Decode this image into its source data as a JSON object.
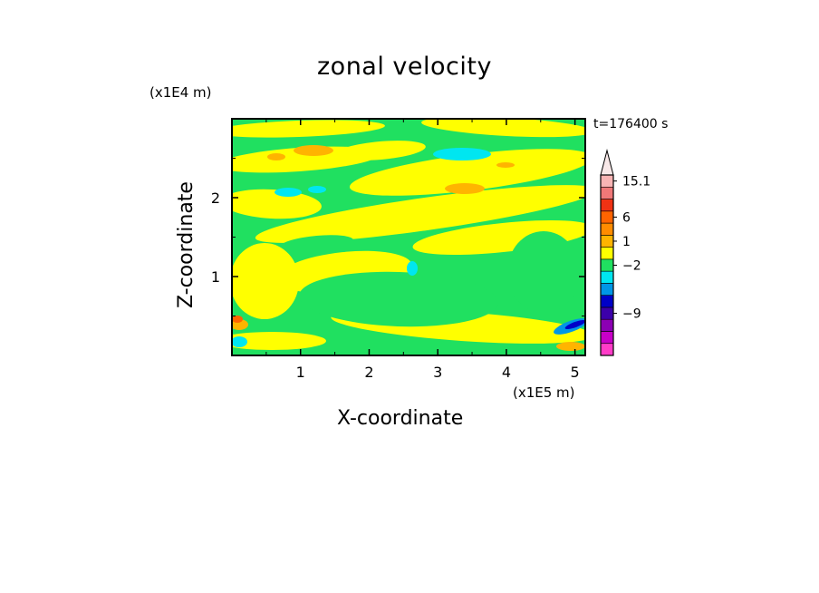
{
  "chart_data": {
    "type": "heatmap",
    "title": "zonal velocity",
    "xlabel": "X-coordinate",
    "ylabel": "Z-coordinate",
    "x_multiplier": "(x1E5 m)",
    "y_multiplier": "(x1E4 m)",
    "time_label": "t=176400 s",
    "xlim": [
      0,
      5.15
    ],
    "ylim": [
      0,
      3.0
    ],
    "x_ticks": [
      {
        "value": 1,
        "label": "1"
      },
      {
        "value": 2,
        "label": "2"
      },
      {
        "value": 3,
        "label": "3"
      },
      {
        "value": 4,
        "label": "4"
      },
      {
        "value": 5,
        "label": "5"
      }
    ],
    "y_ticks": [
      {
        "value": 1,
        "label": "1"
      },
      {
        "value": 2,
        "label": "2"
      }
    ],
    "colorbar": {
      "levels": [
        {
          "color": "#ff3cc8"
        },
        {
          "color": "#c800c8"
        },
        {
          "color": "#8c00b4"
        },
        {
          "color": "#3c00aa"
        },
        {
          "color": "#0000c8"
        },
        {
          "color": "#0096e6"
        },
        {
          "color": "#00e6f0"
        },
        {
          "color": "#20e060"
        },
        {
          "color": "#ffff00"
        },
        {
          "color": "#ffb400"
        },
        {
          "color": "#ff8c00"
        },
        {
          "color": "#ff6400"
        },
        {
          "color": "#f03214"
        },
        {
          "color": "#f07878"
        },
        {
          "color": "#f8b4b4"
        }
      ],
      "labels": [
        {
          "text": "15.1",
          "level": 14
        },
        {
          "text": "6",
          "level": 11
        },
        {
          "text": "1",
          "level": 9
        },
        {
          "text": "−2",
          "level": 7
        },
        {
          "text": "−9",
          "level": 3
        }
      ],
      "max_arrow_color": "#f8e8e8"
    },
    "field_colors": {
      "background": "#20e060",
      "positive": "#ffff00",
      "orange": "#ffb400",
      "cyan": "#00e6f0",
      "blue": "#0096e6",
      "navy": "#0000c8",
      "red": "#ff6400"
    }
  }
}
